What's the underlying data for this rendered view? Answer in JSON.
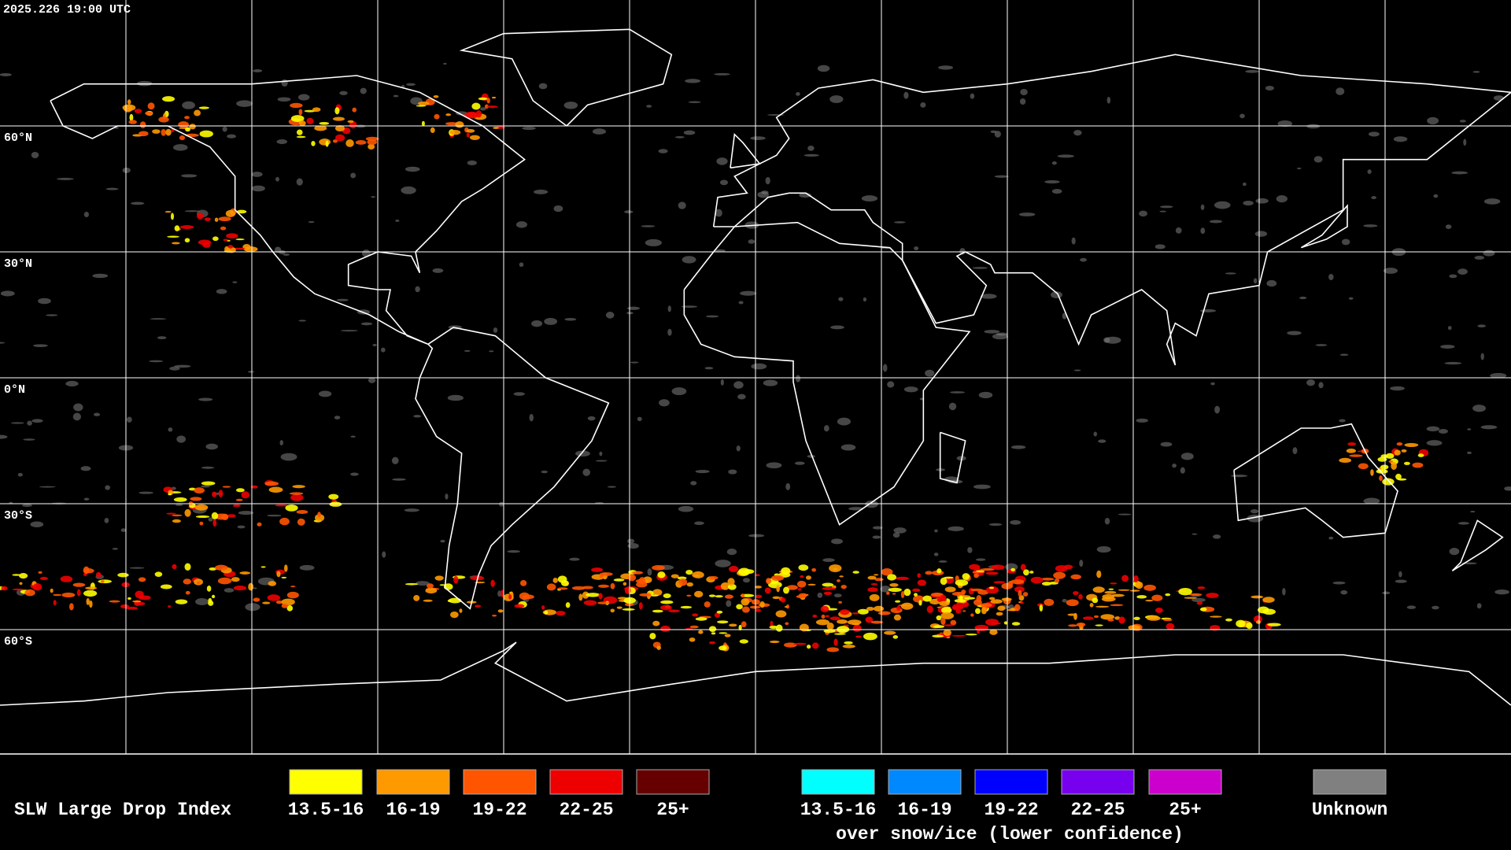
{
  "header": {
    "timestamp": "2025.226 19:00 UTC"
  },
  "map": {
    "lat_labels": [
      "60°N",
      "30°N",
      "0°N",
      "30°S",
      "60°S"
    ]
  },
  "legend": {
    "title": "SLW Large Drop Index",
    "swatches": [
      {
        "label": "13.5-16",
        "color": "#ffff00"
      },
      {
        "label": "16-19",
        "color": "#ff9900"
      },
      {
        "label": "19-22",
        "color": "#ff5500"
      },
      {
        "label": "22-25",
        "color": "#ee0000"
      },
      {
        "label": "25+",
        "color": "#660000"
      }
    ],
    "snow_swatches": [
      {
        "label": "13.5-16",
        "color": "#00ffff"
      },
      {
        "label": "16-19",
        "color": "#0088ff"
      },
      {
        "label": "19-22",
        "color": "#0000ff"
      },
      {
        "label": "22-25",
        "color": "#7700ee"
      },
      {
        "label": "25+",
        "color": "#cc00cc"
      }
    ],
    "snow_caption": "over snow/ice (lower confidence)",
    "unknown": {
      "label": "Unknown",
      "color": "#808080"
    }
  }
}
